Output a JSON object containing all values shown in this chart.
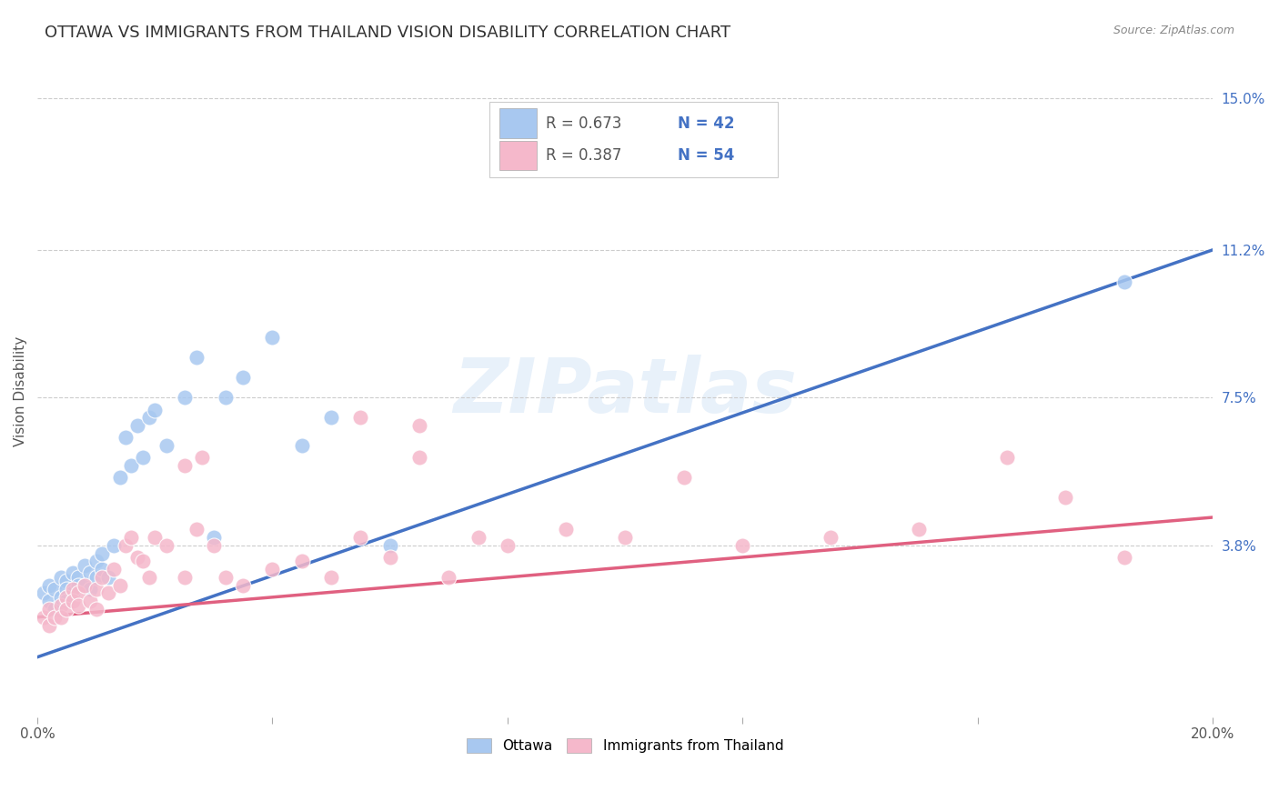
{
  "title": "OTTAWA VS IMMIGRANTS FROM THAILAND VISION DISABILITY CORRELATION CHART",
  "source": "Source: ZipAtlas.com",
  "ylabel": "Vision Disability",
  "x_min": 0.0,
  "x_max": 0.2,
  "y_min": -0.005,
  "y_max": 0.158,
  "x_ticks": [
    0.0,
    0.04,
    0.08,
    0.12,
    0.16,
    0.2
  ],
  "x_tick_labels": [
    "0.0%",
    "",
    "",
    "",
    "",
    "20.0%"
  ],
  "y_tick_labels_right": [
    "15.0%",
    "11.2%",
    "7.5%",
    "3.8%"
  ],
  "y_tick_values_right": [
    0.15,
    0.112,
    0.075,
    0.038
  ],
  "watermark": "ZIPatlas",
  "ottawa_color": "#a8c8f0",
  "thailand_color": "#f5b8cb",
  "ottawa_line_color": "#4472c4",
  "thailand_line_color": "#e06080",
  "legend_R_ottawa": "R = 0.673",
  "legend_N_ottawa": "N = 42",
  "legend_R_thailand": "R = 0.387",
  "legend_N_thailand": "N = 54",
  "ottawa_scatter_x": [
    0.001,
    0.002,
    0.002,
    0.003,
    0.003,
    0.004,
    0.004,
    0.005,
    0.005,
    0.005,
    0.006,
    0.006,
    0.007,
    0.007,
    0.008,
    0.008,
    0.009,
    0.009,
    0.01,
    0.01,
    0.011,
    0.011,
    0.012,
    0.013,
    0.014,
    0.015,
    0.016,
    0.017,
    0.018,
    0.019,
    0.02,
    0.022,
    0.025,
    0.027,
    0.03,
    0.032,
    0.035,
    0.04,
    0.045,
    0.05,
    0.06,
    0.185
  ],
  "ottawa_scatter_y": [
    0.026,
    0.028,
    0.024,
    0.027,
    0.022,
    0.03,
    0.025,
    0.029,
    0.027,
    0.024,
    0.031,
    0.026,
    0.03,
    0.028,
    0.033,
    0.028,
    0.031,
    0.027,
    0.034,
    0.03,
    0.032,
    0.036,
    0.03,
    0.038,
    0.055,
    0.065,
    0.058,
    0.068,
    0.06,
    0.07,
    0.072,
    0.063,
    0.075,
    0.085,
    0.04,
    0.075,
    0.08,
    0.09,
    0.063,
    0.07,
    0.038,
    0.104
  ],
  "thailand_scatter_x": [
    0.001,
    0.002,
    0.002,
    0.003,
    0.004,
    0.004,
    0.005,
    0.005,
    0.006,
    0.006,
    0.007,
    0.007,
    0.008,
    0.009,
    0.01,
    0.01,
    0.011,
    0.012,
    0.013,
    0.014,
    0.015,
    0.016,
    0.017,
    0.018,
    0.019,
    0.02,
    0.022,
    0.025,
    0.027,
    0.03,
    0.032,
    0.035,
    0.04,
    0.045,
    0.05,
    0.055,
    0.06,
    0.065,
    0.07,
    0.075,
    0.08,
    0.09,
    0.1,
    0.11,
    0.12,
    0.135,
    0.15,
    0.165,
    0.175,
    0.185,
    0.025,
    0.028,
    0.055,
    0.065
  ],
  "thailand_scatter_y": [
    0.02,
    0.022,
    0.018,
    0.02,
    0.023,
    0.02,
    0.025,
    0.022,
    0.027,
    0.024,
    0.026,
    0.023,
    0.028,
    0.024,
    0.027,
    0.022,
    0.03,
    0.026,
    0.032,
    0.028,
    0.038,
    0.04,
    0.035,
    0.034,
    0.03,
    0.04,
    0.038,
    0.03,
    0.042,
    0.038,
    0.03,
    0.028,
    0.032,
    0.034,
    0.03,
    0.04,
    0.035,
    0.06,
    0.03,
    0.04,
    0.038,
    0.042,
    0.04,
    0.055,
    0.038,
    0.04,
    0.042,
    0.06,
    0.05,
    0.035,
    0.058,
    0.06,
    0.07,
    0.068
  ],
  "background_color": "#ffffff",
  "grid_color": "#cccccc",
  "title_fontsize": 13,
  "axis_label_fontsize": 11,
  "tick_fontsize": 11
}
